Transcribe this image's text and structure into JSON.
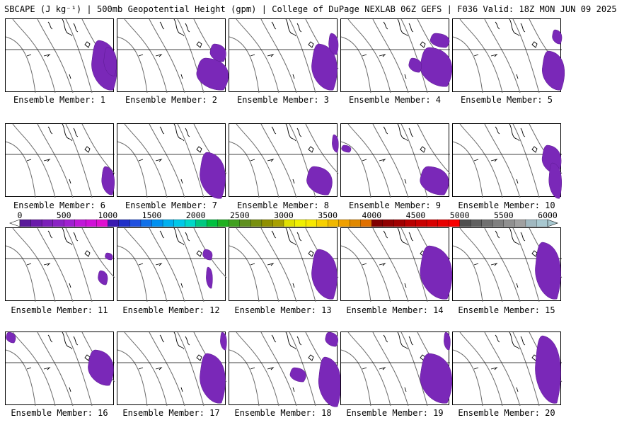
{
  "title": "SBCAPE (J kg⁻¹) | 500mb Geopotential Height (gpm) | College of DuPage NEXLAB 06Z GEFS | F036 Valid: 18Z MON JUN 09 2025",
  "panels": [
    {
      "label": "Ensemble Member: 1"
    },
    {
      "label": "Ensemble Member: 2"
    },
    {
      "label": "Ensemble Member: 3"
    },
    {
      "label": "Ensemble Member: 4"
    },
    {
      "label": "Ensemble Member: 5"
    },
    {
      "label": "Ensemble Member: 6"
    },
    {
      "label": "Ensemble Member: 7"
    },
    {
      "label": "Ensemble Member: 8"
    },
    {
      "label": "Ensemble Member: 9"
    },
    {
      "label": "Ensemble Member: 10"
    },
    {
      "label": "Ensemble Member: 11"
    },
    {
      "label": "Ensemble Member: 12"
    },
    {
      "label": "Ensemble Member: 13"
    },
    {
      "label": "Ensemble Member: 14"
    },
    {
      "label": "Ensemble Member: 15"
    },
    {
      "label": "Ensemble Member: 16"
    },
    {
      "label": "Ensemble Member: 17"
    },
    {
      "label": "Ensemble Member: 18"
    },
    {
      "label": "Ensemble Member: 19"
    },
    {
      "label": "Ensemble Member: 20"
    }
  ],
  "colorbar": {
    "ticks": [
      "0",
      "500",
      "1000",
      "1500",
      "2000",
      "2500",
      "3000",
      "3500",
      "4000",
      "4500",
      "5000",
      "5500",
      "6000"
    ],
    "colors": [
      "#5a1a9a",
      "#6a1aaa",
      "#7b1fb8",
      "#8a22c4",
      "#a020d0",
      "#c018d8",
      "#d010d8",
      "#e010d0",
      "#3a1ab0",
      "#2030c8",
      "#2050e0",
      "#1070e8",
      "#0090f0",
      "#00b0f0",
      "#00c8e8",
      "#00d8c8",
      "#00c880",
      "#00c040",
      "#20b020",
      "#40a020",
      "#609020",
      "#789010",
      "#909000",
      "#a8a000",
      "#e0e000",
      "#f0f000",
      "#f8e800",
      "#f8d000",
      "#f0b800",
      "#f0a000",
      "#e08800",
      "#e07000",
      "#800000",
      "#900000",
      "#a00000",
      "#b80000",
      "#c80000",
      "#d80000",
      "#e80000",
      "#f80000",
      "#505050",
      "#606060",
      "#707070",
      "#808080",
      "#909090",
      "#a0a0a0",
      "#a0b8c0",
      "#a8c8d0"
    ],
    "cape_color": "#7a28b8",
    "cape_edge": "#5a1890"
  }
}
